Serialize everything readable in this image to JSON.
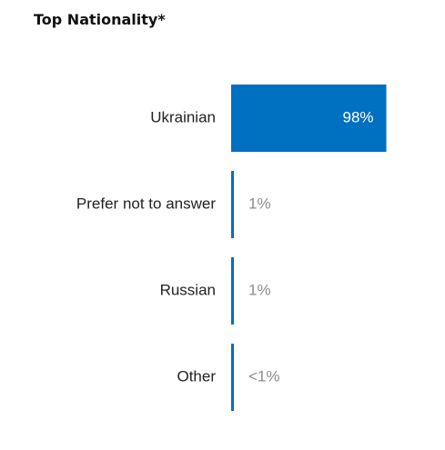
{
  "chart_data": {
    "type": "bar",
    "orientation": "horizontal",
    "title": "Top Nationality*",
    "categories": [
      "Ukrainian",
      "Prefer not to answer",
      "Russian",
      "Other"
    ],
    "values": [
      98,
      1,
      1,
      0.5
    ],
    "value_labels": [
      "98%",
      "1%",
      "1%",
      "<1%"
    ],
    "xlim": [
      0,
      100
    ],
    "grid": false,
    "bar_color": "#0070C0",
    "label_color_inside": "#ffffff",
    "label_color_outside": "#8c8c8c"
  }
}
